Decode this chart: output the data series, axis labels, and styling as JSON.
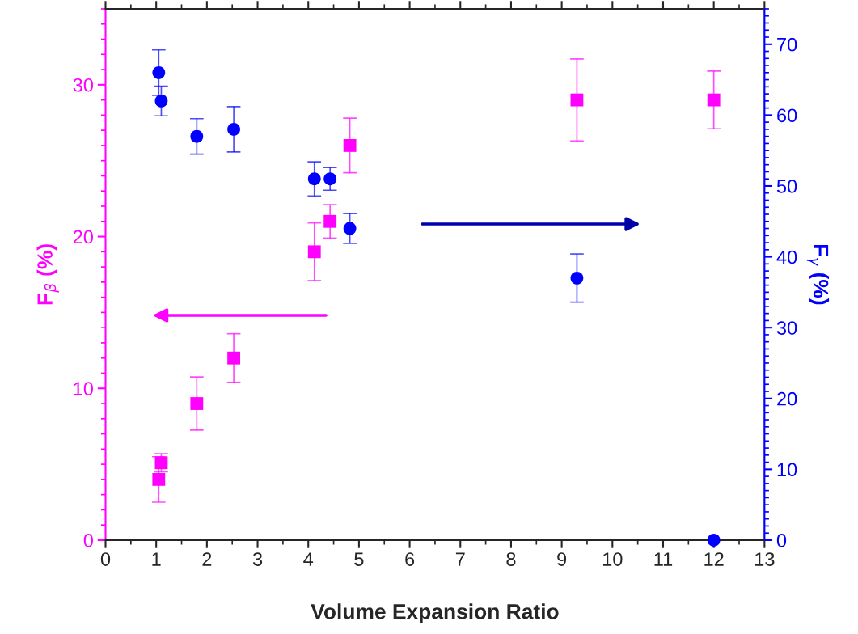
{
  "chart_data": {
    "type": "scatter",
    "xlabel": "Volume Expansion Ratio",
    "ylabel": "F$_{β}$ (%)",
    "y2label": "F$_{γ}$ (%)",
    "xlim": [
      0,
      13
    ],
    "xticks": [
      0,
      1,
      2,
      3,
      4,
      5,
      6,
      7,
      8,
      9,
      10,
      11,
      12,
      13
    ],
    "ylim": [
      0,
      35
    ],
    "yticks": [
      0,
      10,
      20,
      30
    ],
    "y2lim": [
      0,
      75
    ],
    "y2ticks": [
      0,
      10,
      20,
      30,
      40,
      50,
      60,
      70
    ],
    "grid": false,
    "legend": false,
    "series": [
      {
        "axis": "y",
        "color": "#ff00ff",
        "marker": "square",
        "x": [
          1.05,
          1.1,
          1.8,
          2.53,
          4.12,
          4.43,
          4.82,
          9.3,
          12
        ],
        "values": [
          4,
          5.1,
          9,
          12,
          19,
          21,
          26,
          29,
          29
        ],
        "errors": [
          1.5,
          0.6,
          1.75,
          1.6,
          1.9,
          1.1,
          1.8,
          2.7,
          1.9
        ]
      },
      {
        "axis": "y2",
        "color": "#0000ff",
        "marker": "circle",
        "x": [
          1.05,
          1.1,
          1.8,
          2.53,
          4.12,
          4.43,
          4.82,
          9.3,
          12
        ],
        "values": [
          66,
          62,
          57,
          58,
          51,
          51,
          44,
          37,
          0
        ],
        "errors": [
          3.2,
          2.1,
          2.5,
          3.2,
          2.4,
          1.6,
          2.1,
          3.4,
          null
        ]
      }
    ]
  }
}
